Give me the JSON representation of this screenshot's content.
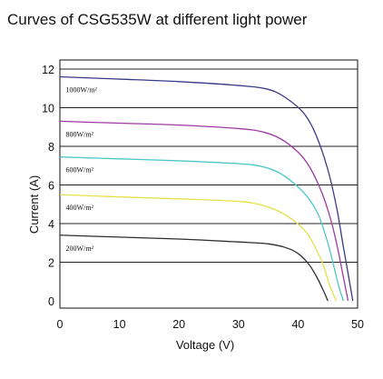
{
  "chart_data": {
    "type": "line",
    "title": "Curves of CSG535W at different light power",
    "xlabel": "Voltage (V)",
    "ylabel": "Current (A)",
    "xlim": [
      0,
      50
    ],
    "ylim": [
      0,
      12
    ],
    "xticks": [
      "0",
      "10",
      "20",
      "30",
      "40",
      "50"
    ],
    "yticks": [
      "0",
      "2",
      "4",
      "6",
      "8",
      "10",
      "12"
    ],
    "grid": "horizontal",
    "legend": "inline-labels",
    "series": [
      {
        "name": "1000W/m²",
        "color": "#3a3a86",
        "points": [
          [
            0,
            11.6
          ],
          [
            10,
            11.48
          ],
          [
            20,
            11.35
          ],
          [
            30,
            11.15
          ],
          [
            35,
            10.95
          ],
          [
            38,
            10.5
          ],
          [
            41,
            9.7
          ],
          [
            43,
            8.6
          ],
          [
            45,
            6.8
          ],
          [
            46.5,
            4.8
          ],
          [
            47.5,
            3.0
          ],
          [
            48.3,
            1.6
          ],
          [
            49.2,
            0
          ]
        ]
      },
      {
        "name": "800W/m²",
        "color": "#9e3aa2",
        "points": [
          [
            0,
            9.3
          ],
          [
            10,
            9.2
          ],
          [
            20,
            9.1
          ],
          [
            30,
            8.92
          ],
          [
            34,
            8.75
          ],
          [
            37,
            8.4
          ],
          [
            40,
            7.7
          ],
          [
            42,
            6.9
          ],
          [
            44,
            5.6
          ],
          [
            45.5,
            4.2
          ],
          [
            46.6,
            2.8
          ],
          [
            47.5,
            1.4
          ],
          [
            48.4,
            0
          ]
        ]
      },
      {
        "name": "600W/m²",
        "color": "#4ec6c8",
        "points": [
          [
            0,
            7.45
          ],
          [
            10,
            7.35
          ],
          [
            20,
            7.25
          ],
          [
            30,
            7.1
          ],
          [
            34,
            6.95
          ],
          [
            37,
            6.6
          ],
          [
            40,
            5.9
          ],
          [
            42,
            5.2
          ],
          [
            43.5,
            4.4
          ],
          [
            45,
            3.0
          ],
          [
            46,
            1.8
          ],
          [
            46.8,
            0.8
          ],
          [
            47.6,
            0
          ]
        ]
      },
      {
        "name": "400W/m²",
        "color": "#e6e04a",
        "points": [
          [
            0,
            5.5
          ],
          [
            10,
            5.38
          ],
          [
            20,
            5.28
          ],
          [
            30,
            5.15
          ],
          [
            34,
            4.95
          ],
          [
            37,
            4.6
          ],
          [
            39.5,
            4.1
          ],
          [
            41.5,
            3.5
          ],
          [
            43,
            2.7
          ],
          [
            44.3,
            1.8
          ],
          [
            45.2,
            0.9
          ],
          [
            46.4,
            0
          ]
        ]
      },
      {
        "name": "200W/m²",
        "color": "#2e2e2e",
        "points": [
          [
            0,
            3.4
          ],
          [
            10,
            3.3
          ],
          [
            20,
            3.2
          ],
          [
            30,
            3.05
          ],
          [
            35,
            2.95
          ],
          [
            38,
            2.75
          ],
          [
            40,
            2.45
          ],
          [
            41.8,
            1.9
          ],
          [
            43.2,
            1.2
          ],
          [
            44.3,
            0.5
          ],
          [
            45.0,
            0
          ]
        ]
      }
    ]
  }
}
